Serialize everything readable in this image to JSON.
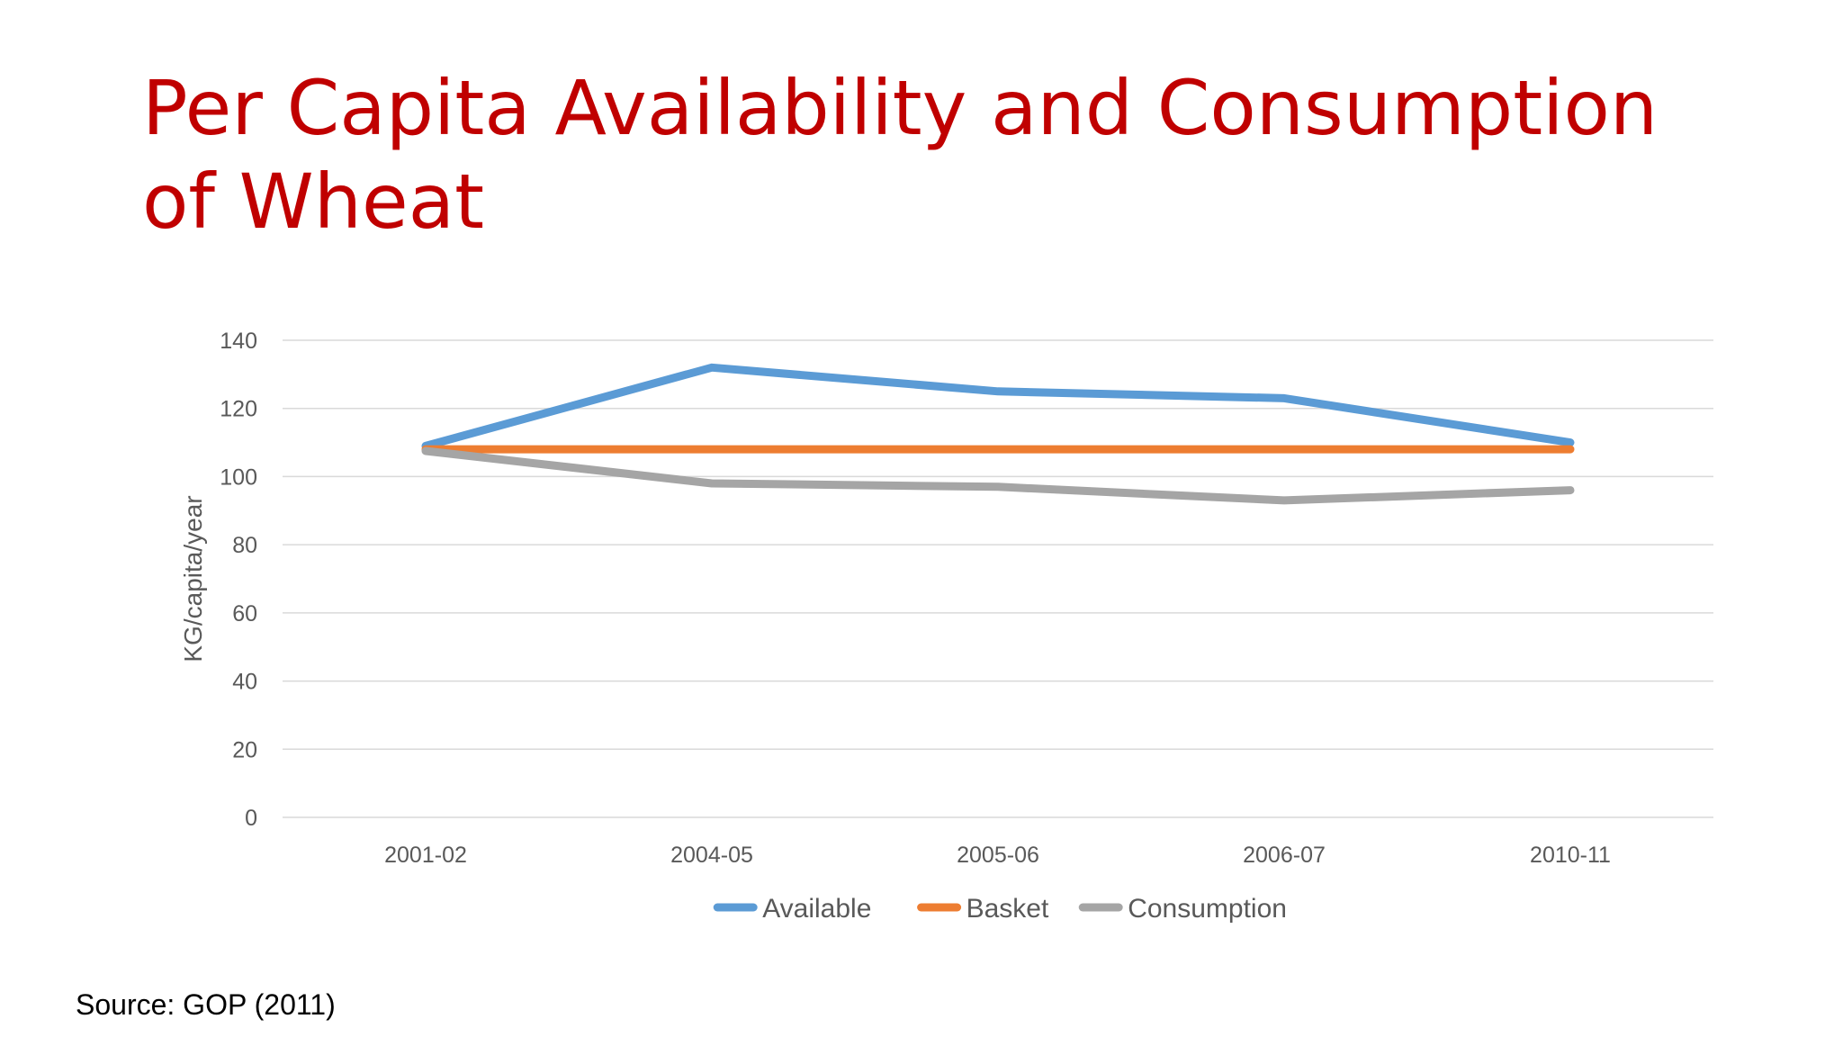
{
  "slide": {
    "title": "Per Capita Availability and Consumption of Wheat",
    "source": "Source: GOP (2011)"
  },
  "chart_data": {
    "type": "line",
    "title": "",
    "xlabel": "",
    "ylabel": "KG/capita/year",
    "categories": [
      "2001-02",
      "2004-05",
      "2005-06",
      "2006-07",
      "2010-11"
    ],
    "ylim": [
      0,
      140
    ],
    "yticks": [
      0,
      20,
      40,
      60,
      80,
      100,
      120,
      140
    ],
    "grid": true,
    "legend_position": "bottom",
    "series": [
      {
        "name": "Available",
        "values": [
          109,
          132,
          125,
          123,
          110
        ],
        "color": "#5b9bd5"
      },
      {
        "name": "Basket",
        "values": [
          108,
          108,
          108,
          108,
          108
        ],
        "color": "#ed7d31"
      },
      {
        "name": "Consumption",
        "values": [
          107.5,
          98,
          97,
          93,
          96
        ],
        "color": "#a5a5a5"
      }
    ]
  }
}
